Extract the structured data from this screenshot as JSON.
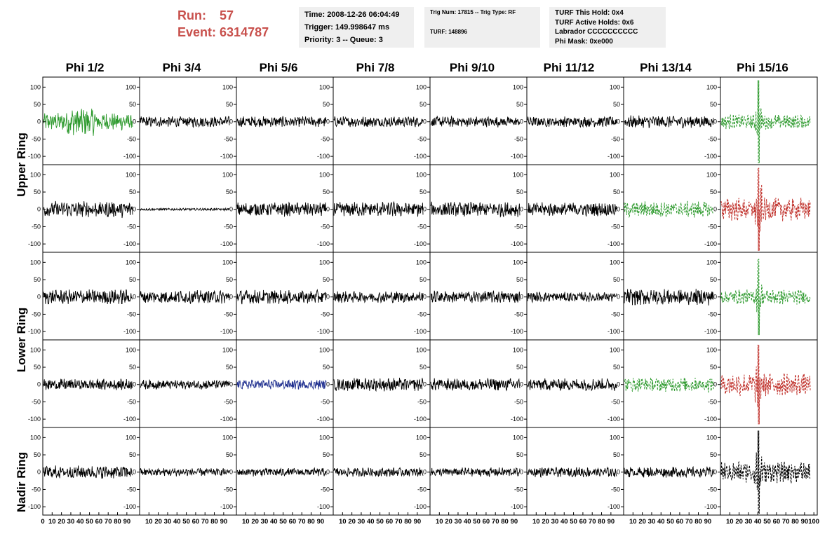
{
  "header": {
    "run_label": "Run:",
    "run_value": "57",
    "event_label": "Event:",
    "event_value": "6314787"
  },
  "info_box_1": {
    "time": "Time: 2008-12-26 06:04:49",
    "trigger": "Trigger: 149.998647 ms",
    "priority": "Priority: 3 -- Queue: 3"
  },
  "info_box_2": {
    "trig": "Trig Num: 17815 -- Trig Type: RF",
    "turf": "TURF: 148896"
  },
  "info_box_3": {
    "hold": "TURF This Hold: 0x4",
    "active": "TURF Active Holds: 0x6",
    "labrador": "Labrador CCCCCCCCCC",
    "phi_mask": "Phi Mask: 0xe000"
  },
  "columns": [
    "Phi 1/2",
    "Phi 3/4",
    "Phi 5/6",
    "Phi 7/8",
    "Phi 9/10",
    "Phi 11/12",
    "Phi 13/14",
    "Phi 15/16"
  ],
  "row_groups": [
    "Upper Ring",
    "Lower Ring",
    "Nadir Ring"
  ],
  "y_ticks": [
    "100",
    "50",
    "0",
    "-50",
    "-100"
  ],
  "x_ticks": [
    "0",
    "10",
    "20",
    "30",
    "40",
    "50",
    "60",
    "70",
    "80",
    "90",
    "100"
  ],
  "chart_data": {
    "type": "line",
    "description_free": true,
    "xlim": [
      0,
      100
    ],
    "ylim": [
      -120,
      125
    ],
    "grid": false,
    "panels": [
      {
        "row": 0,
        "col": 0,
        "color": "#2e9a2e",
        "style": "solid",
        "amp": 22,
        "burst": [
          25,
          55,
          1.6
        ]
      },
      {
        "row": 0,
        "col": 1,
        "color": "#000000",
        "style": "solid",
        "amp": 13
      },
      {
        "row": 0,
        "col": 2,
        "color": "#000000",
        "style": "solid",
        "amp": 13
      },
      {
        "row": 0,
        "col": 3,
        "color": "#000000",
        "style": "solid",
        "amp": 13
      },
      {
        "row": 0,
        "col": 4,
        "color": "#000000",
        "style": "solid",
        "amp": 13
      },
      {
        "row": 0,
        "col": 5,
        "color": "#000000",
        "style": "solid",
        "amp": 13
      },
      {
        "row": 0,
        "col": 6,
        "color": "#000000",
        "style": "solid",
        "amp": 15
      },
      {
        "row": 0,
        "col": 7,
        "color": "#2e9a2e",
        "style": "dashed",
        "amp": 18,
        "spike": [
          40,
          120
        ]
      },
      {
        "row": 1,
        "col": 0,
        "color": "#000000",
        "style": "solid",
        "amp": 20
      },
      {
        "row": 1,
        "col": 1,
        "color": "#000000",
        "style": "solid",
        "amp": 3
      },
      {
        "row": 1,
        "col": 2,
        "color": "#000000",
        "style": "solid",
        "amp": 17
      },
      {
        "row": 1,
        "col": 3,
        "color": "#000000",
        "style": "solid",
        "amp": 18
      },
      {
        "row": 1,
        "col": 4,
        "color": "#000000",
        "style": "solid",
        "amp": 18
      },
      {
        "row": 1,
        "col": 5,
        "color": "#000000",
        "style": "solid",
        "amp": 17
      },
      {
        "row": 1,
        "col": 6,
        "color": "#2e9a2e",
        "style": "dashed",
        "amp": 20
      },
      {
        "row": 1,
        "col": 7,
        "color": "#c0302a",
        "style": "dashed",
        "amp": 28,
        "spike": [
          40,
          120
        ]
      },
      {
        "row": 2,
        "col": 0,
        "color": "#000000",
        "style": "solid",
        "amp": 18
      },
      {
        "row": 2,
        "col": 1,
        "color": "#000000",
        "style": "solid",
        "amp": 16
      },
      {
        "row": 2,
        "col": 2,
        "color": "#000000",
        "style": "solid",
        "amp": 17
      },
      {
        "row": 2,
        "col": 3,
        "color": "#000000",
        "style": "solid",
        "amp": 14
      },
      {
        "row": 2,
        "col": 4,
        "color": "#000000",
        "style": "solid",
        "amp": 15
      },
      {
        "row": 2,
        "col": 5,
        "color": "#000000",
        "style": "solid",
        "amp": 12
      },
      {
        "row": 2,
        "col": 6,
        "color": "#000000",
        "style": "solid",
        "amp": 20
      },
      {
        "row": 2,
        "col": 7,
        "color": "#2e9a2e",
        "style": "dashed",
        "amp": 18,
        "spike": [
          40,
          110
        ]
      },
      {
        "row": 3,
        "col": 0,
        "color": "#000000",
        "style": "solid",
        "amp": 14
      },
      {
        "row": 3,
        "col": 1,
        "color": "#000000",
        "style": "solid",
        "amp": 12
      },
      {
        "row": 3,
        "col": 2,
        "color": "#1f2f8f",
        "style": "solid",
        "amp": 12
      },
      {
        "row": 3,
        "col": 3,
        "color": "#000000",
        "style": "solid",
        "amp": 16
      },
      {
        "row": 3,
        "col": 4,
        "color": "#000000",
        "style": "solid",
        "amp": 15
      },
      {
        "row": 3,
        "col": 5,
        "color": "#000000",
        "style": "solid",
        "amp": 15
      },
      {
        "row": 3,
        "col": 6,
        "color": "#2e9a2e",
        "style": "dashed",
        "amp": 18
      },
      {
        "row": 3,
        "col": 7,
        "color": "#c0302a",
        "style": "dashed",
        "amp": 28,
        "spike": [
          40,
          115
        ]
      },
      {
        "row": 4,
        "col": 0,
        "color": "#000000",
        "style": "solid",
        "amp": 16
      },
      {
        "row": 4,
        "col": 1,
        "color": "#000000",
        "style": "solid",
        "amp": 10
      },
      {
        "row": 4,
        "col": 2,
        "color": "#000000",
        "style": "solid",
        "amp": 10
      },
      {
        "row": 4,
        "col": 3,
        "color": "#000000",
        "style": "solid",
        "amp": 11
      },
      {
        "row": 4,
        "col": 4,
        "color": "#000000",
        "style": "solid",
        "amp": 11
      },
      {
        "row": 4,
        "col": 5,
        "color": "#000000",
        "style": "solid",
        "amp": 12
      },
      {
        "row": 4,
        "col": 6,
        "color": "#000000",
        "style": "solid",
        "amp": 13
      },
      {
        "row": 4,
        "col": 7,
        "color": "#000000",
        "style": "dashed",
        "amp": 26,
        "spike": [
          40,
          120
        ]
      }
    ]
  }
}
